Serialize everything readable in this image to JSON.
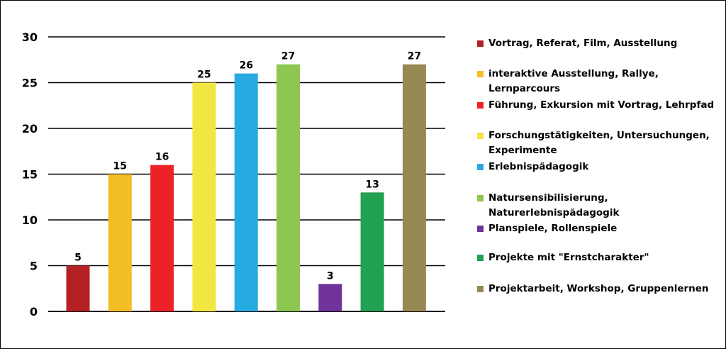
{
  "chart_data": {
    "type": "bar",
    "categories": [
      "Vortrag, Referat, Film, Ausstellung",
      "interaktive Ausstellung, Rallye, Lernparcours",
      "Führung, Exkursion mit Vortrag, Lehrpfad",
      "Forschungstätigkeiten, Untersuchungen,\nExperimente",
      "Erlebnispädagogik",
      "Natursensibilisierung,\nNaturerlebnispädagogik",
      "Planspiele, Rollenspiele",
      "Projekte mit \"Ernstcharakter\"",
      "Projektarbeit, Workshop, Gruppenlernen"
    ],
    "values": [
      5,
      15,
      16,
      25,
      26,
      27,
      3,
      13,
      27
    ],
    "colors": [
      "#b52025",
      "#f3bd25",
      "#ec2227",
      "#f1e642",
      "#27a9e2",
      "#8dc651",
      "#6f339a",
      "#21a152",
      "#978953"
    ],
    "ylim": [
      0,
      30
    ],
    "yticks": [
      0,
      5,
      10,
      15,
      20,
      25,
      30
    ],
    "grid": true,
    "legend_position": "right"
  }
}
